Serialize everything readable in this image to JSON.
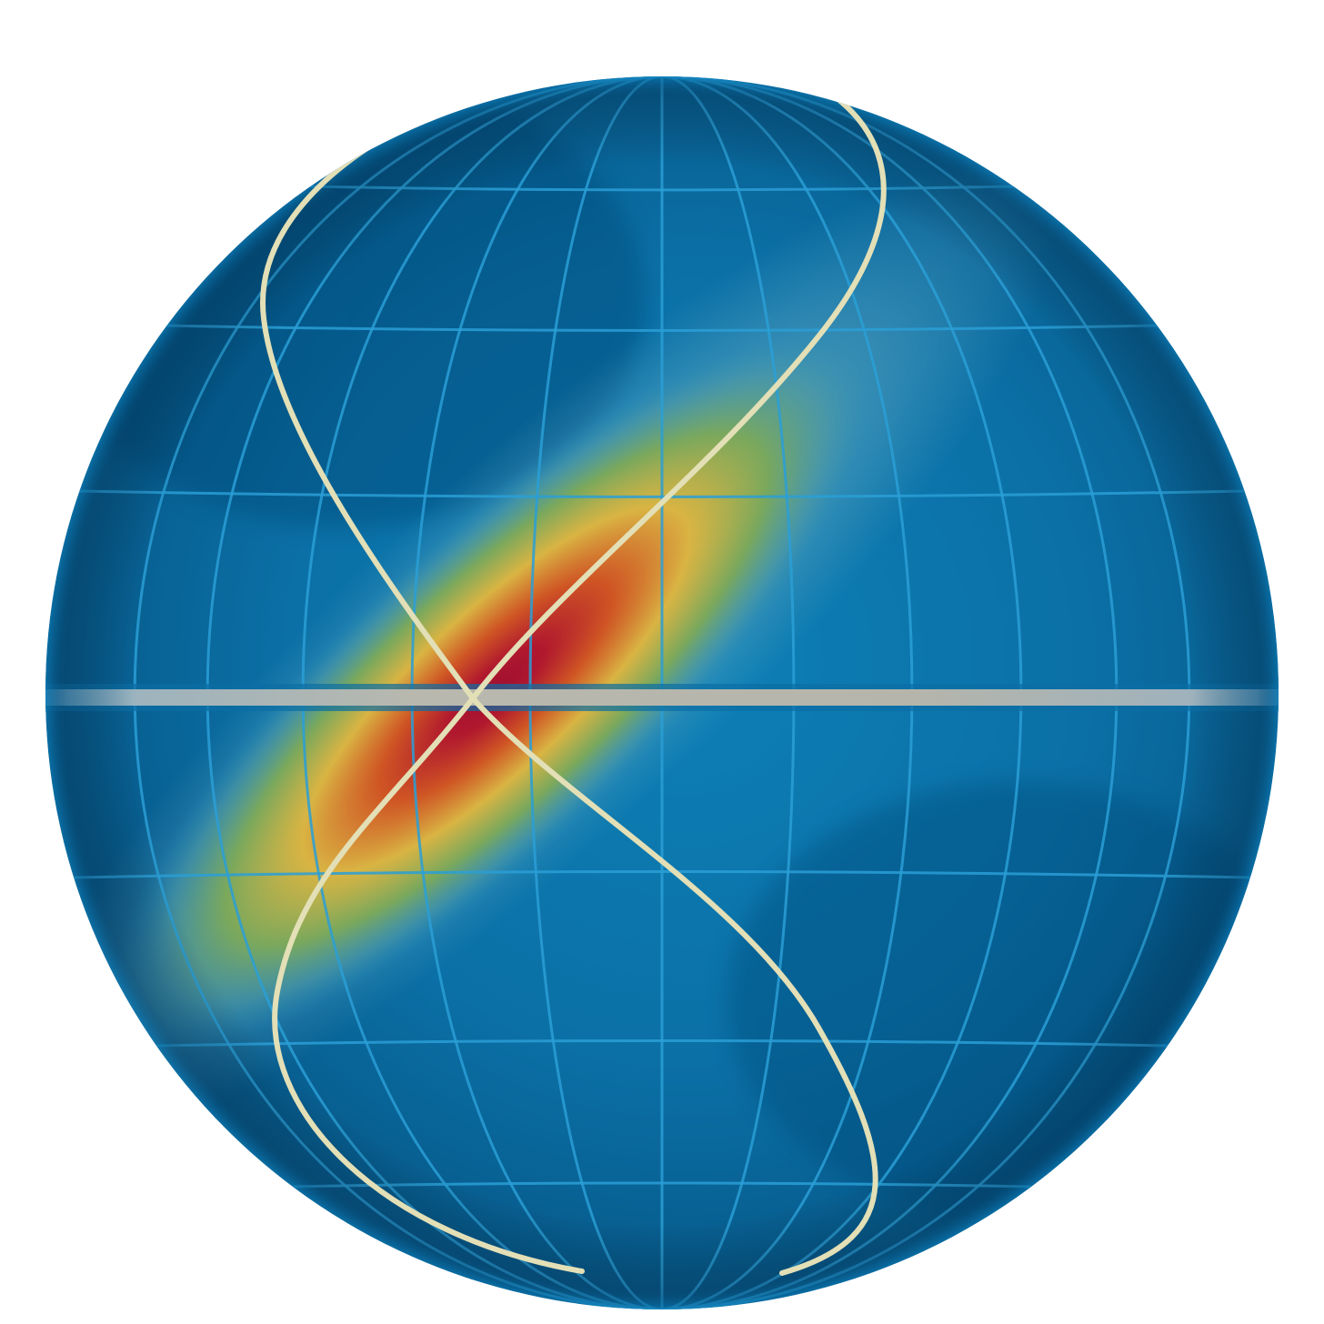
{
  "figure": {
    "subject": "sphere-heatmap-with-crossing-curves",
    "colors": {
      "background": "#ffffff",
      "sphere_base": "#0a6fa4",
      "sphere_dark": "#064a7c",
      "sphere_light": "#1a8fc2",
      "grid_line": "#2a9bd0",
      "equator": "#b7b7aa",
      "curve": "#e6e1b6",
      "heat_peak": "#a01230",
      "heat_orange": "#d05a22",
      "heat_yellow": "#d8c240",
      "heat_green": "#6ea266",
      "heat_pale": "#7ab8c8"
    },
    "elements": [
      "latitude-longitude-grid",
      "equator",
      "heat-band",
      "crossing-curves"
    ]
  }
}
